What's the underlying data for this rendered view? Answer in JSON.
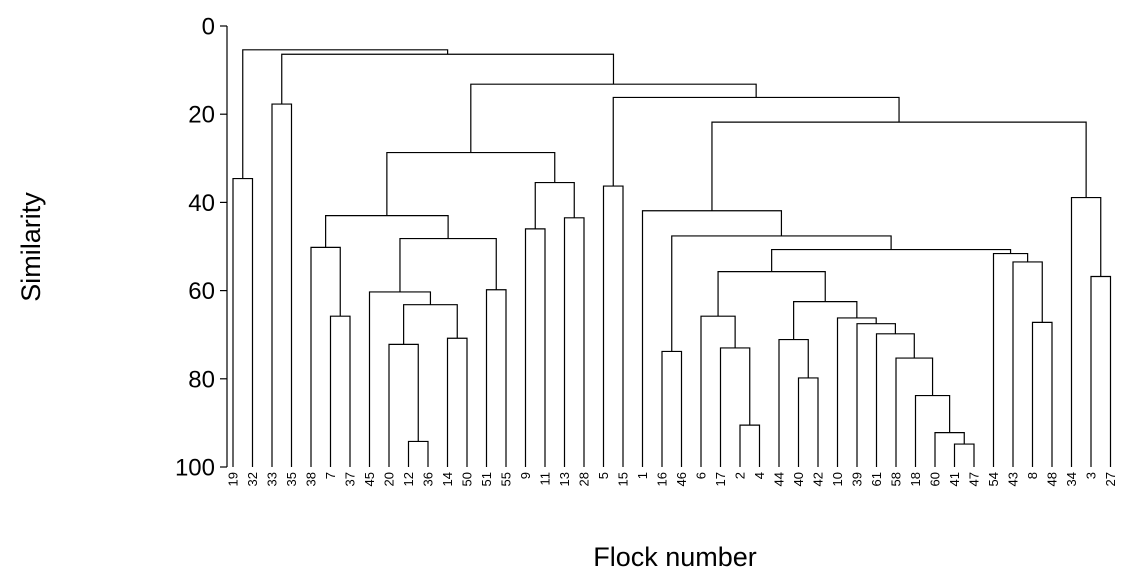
{
  "chart_data": {
    "type": "dendrogram",
    "xlabel": "Flock number",
    "ylabel": "Similarity",
    "ylim": [
      0,
      100
    ],
    "y_inverted": true,
    "yticks": [
      0,
      20,
      40,
      60,
      80,
      100
    ],
    "grid": false,
    "colors": {
      "lines": "#000000",
      "background": "#ffffff"
    },
    "leaves": [
      "19",
      "32",
      "33",
      "35",
      "38",
      "7",
      "37",
      "45",
      "20",
      "12",
      "36",
      "14",
      "50",
      "51",
      "55",
      "9",
      "11",
      "13",
      "28",
      "5",
      "15",
      "1",
      "16",
      "46",
      "6",
      "17",
      "2",
      "4",
      "44",
      "40",
      "42",
      "10",
      "39",
      "61",
      "58",
      "18",
      "60",
      "41",
      "47",
      "54",
      "43",
      "8",
      "48",
      "34",
      "3",
      "27"
    ],
    "merges": [
      {
        "a": "12",
        "b": "36",
        "similarity": 94.2
      },
      {
        "a": "41",
        "b": "47",
        "similarity": 94.8
      },
      {
        "a": "2",
        "b": "4",
        "similarity": 90.5
      },
      {
        "a": "60",
        "b": 2,
        "similarity": 92.2
      },
      {
        "a": "18",
        "b": 4,
        "similarity": 83.8
      },
      {
        "a": "58",
        "b": 5,
        "similarity": 75.3
      },
      {
        "a": "40",
        "b": "42",
        "similarity": 79.8
      },
      {
        "a": "16",
        "b": "46",
        "similarity": 73.8
      },
      {
        "a": "17",
        "b": 3,
        "similarity": 73.0
      },
      {
        "a": "20",
        "b": 1,
        "similarity": 72.2
      },
      {
        "a": "44",
        "b": 7,
        "similarity": 71.1
      },
      {
        "a": "14",
        "b": "50",
        "similarity": 70.8
      },
      {
        "a": "61",
        "b": 6,
        "similarity": 69.8
      },
      {
        "a": "39",
        "b": 13,
        "similarity": 67.5
      },
      {
        "a": "8",
        "b": "48",
        "similarity": 67.2
      },
      {
        "a": "10",
        "b": 14,
        "similarity": 66.2
      },
      {
        "a": "6",
        "b": 9,
        "similarity": 65.8
      },
      {
        "a": "7",
        "b": "37",
        "similarity": 65.8
      },
      {
        "a": 10,
        "b": 12,
        "similarity": 63.2
      },
      {
        "a": 11,
        "b": 16,
        "similarity": 62.5
      },
      {
        "a": "45",
        "b": 19,
        "similarity": 60.3
      },
      {
        "a": "51",
        "b": "55",
        "similarity": 59.8
      },
      {
        "a": "3",
        "b": "27",
        "similarity": 56.8
      },
      {
        "a": 17,
        "b": 20,
        "similarity": 55.7
      },
      {
        "a": "43",
        "b": 15,
        "similarity": 53.5
      },
      {
        "a": "54",
        "b": 25,
        "similarity": 51.6
      },
      {
        "a": 24,
        "b": 26,
        "similarity": 50.7
      },
      {
        "a": "38",
        "b": 18,
        "similarity": 50.2
      },
      {
        "a": 21,
        "b": 22,
        "similarity": 48.2
      },
      {
        "a": 8,
        "b": 27,
        "similarity": 47.6
      },
      {
        "a": "9",
        "b": "11",
        "similarity": 46.0
      },
      {
        "a": "13",
        "b": "28",
        "similarity": 43.5
      },
      {
        "a": 28,
        "b": 29,
        "similarity": 43.0
      },
      {
        "a": "1",
        "b": 30,
        "similarity": 41.9
      },
      {
        "a": "34",
        "b": 23,
        "similarity": 38.9
      },
      {
        "a": "5",
        "b": "15",
        "similarity": 36.3
      },
      {
        "a": 31,
        "b": 32,
        "similarity": 35.5
      },
      {
        "a": "19",
        "b": "32",
        "similarity": 34.6
      },
      {
        "a": 33,
        "b": 37,
        "similarity": 28.7
      },
      {
        "a": 34,
        "b": 35,
        "similarity": 21.8
      },
      {
        "a": 36,
        "b": 40,
        "similarity": 16.2
      },
      {
        "a": "33",
        "b": "35",
        "similarity": 17.7
      },
      {
        "a": 39,
        "b": 41,
        "similarity": 13.2
      },
      {
        "a": 42,
        "b": 43,
        "similarity": 6.4
      },
      {
        "a": 38,
        "b": 44,
        "similarity": 5.4
      }
    ]
  }
}
